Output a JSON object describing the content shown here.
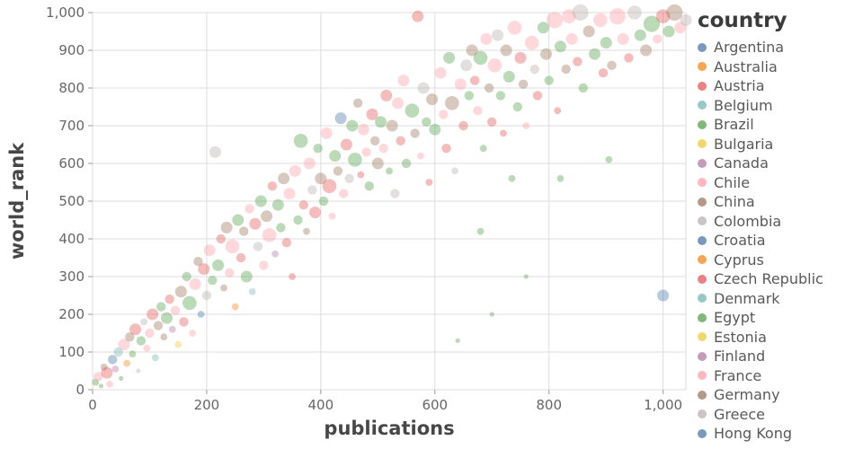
{
  "chart_data": {
    "type": "scatter",
    "title": "",
    "xlabel": "publications",
    "ylabel": "world_rank",
    "xlim": [
      0,
      1040
    ],
    "ylim": [
      0,
      1000
    ],
    "grid": true,
    "point_opacity": 0.4,
    "x_ticks": [
      {
        "v": 0,
        "label": "0"
      },
      {
        "v": 200,
        "label": "200"
      },
      {
        "v": 400,
        "label": "400"
      },
      {
        "v": 600,
        "label": "600"
      },
      {
        "v": 800,
        "label": "800"
      },
      {
        "v": 1000,
        "label": "1,000"
      }
    ],
    "y_ticks": [
      {
        "v": 0,
        "label": "0"
      },
      {
        "v": 100,
        "label": "100"
      },
      {
        "v": 200,
        "label": "200"
      },
      {
        "v": 300,
        "label": "300"
      },
      {
        "v": 400,
        "label": "400"
      },
      {
        "v": 500,
        "label": "500"
      },
      {
        "v": 600,
        "label": "600"
      },
      {
        "v": 700,
        "label": "700"
      },
      {
        "v": 800,
        "label": "800"
      },
      {
        "v": 900,
        "label": "900"
      },
      {
        "v": 1000,
        "label": "1,000"
      }
    ],
    "legend": {
      "title": "country",
      "position": "right",
      "items": [
        "Argentina",
        "Australia",
        "Austria",
        "Belgium",
        "Brazil",
        "Bulgaria",
        "Canada",
        "Chile",
        "China",
        "Colombia",
        "Croatia",
        "Cyprus",
        "Czech Republic",
        "Denmark",
        "Egypt",
        "Estonia",
        "Finland",
        "France",
        "Germany",
        "Greece",
        "Hong Kong"
      ]
    },
    "palette": [
      "#4c78a8",
      "#f58518",
      "#e45756",
      "#72b7b2",
      "#54a24b",
      "#eeca3b",
      "#b279a2",
      "#ff9da6",
      "#9d755d",
      "#bab0ac"
    ],
    "points_format": [
      "publications",
      "world_rank",
      "radius",
      "country_index"
    ],
    "points": [
      [
        5,
        20,
        3,
        4
      ],
      [
        10,
        35,
        4,
        17
      ],
      [
        15,
        10,
        2,
        14
      ],
      [
        20,
        60,
        3,
        8
      ],
      [
        25,
        45,
        5,
        2
      ],
      [
        30,
        15,
        3,
        7
      ],
      [
        35,
        80,
        4,
        0
      ],
      [
        40,
        55,
        3,
        16
      ],
      [
        45,
        100,
        4,
        3
      ],
      [
        50,
        30,
        2,
        4
      ],
      [
        55,
        120,
        5,
        17
      ],
      [
        60,
        70,
        3,
        1
      ],
      [
        65,
        140,
        4,
        8
      ],
      [
        70,
        95,
        3,
        14
      ],
      [
        75,
        160,
        5,
        2
      ],
      [
        80,
        50,
        2,
        19
      ],
      [
        85,
        130,
        4,
        4
      ],
      [
        90,
        180,
        3,
        9
      ],
      [
        95,
        110,
        3,
        7
      ],
      [
        100,
        150,
        4,
        17
      ],
      [
        105,
        200,
        5,
        2
      ],
      [
        110,
        85,
        3,
        13
      ],
      [
        115,
        170,
        4,
        8
      ],
      [
        120,
        220,
        4,
        4
      ],
      [
        125,
        140,
        3,
        18
      ],
      [
        130,
        190,
        5,
        14
      ],
      [
        135,
        240,
        4,
        2
      ],
      [
        140,
        160,
        3,
        6
      ],
      [
        145,
        210,
        4,
        17
      ],
      [
        150,
        120,
        3,
        5
      ],
      [
        155,
        260,
        5,
        8
      ],
      [
        160,
        180,
        4,
        2
      ],
      [
        165,
        300,
        4,
        14
      ],
      [
        170,
        230,
        6,
        4
      ],
      [
        175,
        150,
        3,
        17
      ],
      [
        180,
        280,
        5,
        7
      ],
      [
        185,
        340,
        4,
        8
      ],
      [
        190,
        200,
        3,
        0
      ],
      [
        195,
        320,
        5,
        2
      ],
      [
        200,
        250,
        4,
        9
      ],
      [
        205,
        370,
        5,
        17
      ],
      [
        210,
        290,
        4,
        14
      ],
      [
        215,
        630,
        5,
        9
      ],
      [
        220,
        330,
        5,
        4
      ],
      [
        225,
        400,
        4,
        2
      ],
      [
        230,
        270,
        3,
        8
      ],
      [
        235,
        430,
        5,
        18
      ],
      [
        240,
        310,
        4,
        7
      ],
      [
        245,
        380,
        6,
        17
      ],
      [
        250,
        220,
        3,
        1
      ],
      [
        255,
        450,
        5,
        14
      ],
      [
        260,
        350,
        4,
        2
      ],
      [
        265,
        420,
        4,
        8
      ],
      [
        270,
        300,
        5,
        4
      ],
      [
        275,
        480,
        4,
        17
      ],
      [
        280,
        260,
        3,
        3
      ],
      [
        285,
        440,
        5,
        2
      ],
      [
        290,
        380,
        4,
        9
      ],
      [
        295,
        500,
        5,
        14
      ],
      [
        300,
        330,
        4,
        7
      ],
      [
        305,
        460,
        5,
        8
      ],
      [
        310,
        410,
        6,
        17
      ],
      [
        315,
        540,
        4,
        2
      ],
      [
        320,
        360,
        3,
        16
      ],
      [
        325,
        490,
        5,
        4
      ],
      [
        330,
        430,
        4,
        14
      ],
      [
        335,
        560,
        5,
        8
      ],
      [
        340,
        390,
        4,
        2
      ],
      [
        345,
        520,
        5,
        17
      ],
      [
        350,
        300,
        3,
        12
      ],
      [
        355,
        580,
        5,
        7
      ],
      [
        360,
        450,
        4,
        14
      ],
      [
        365,
        660,
        6,
        4
      ],
      [
        370,
        490,
        4,
        2
      ],
      [
        375,
        420,
        3,
        8
      ],
      [
        380,
        600,
        5,
        17
      ],
      [
        385,
        530,
        4,
        9
      ],
      [
        390,
        470,
        5,
        2
      ],
      [
        395,
        640,
        4,
        14
      ],
      [
        400,
        560,
        5,
        8
      ],
      [
        405,
        500,
        4,
        4
      ],
      [
        410,
        680,
        5,
        17
      ],
      [
        415,
        540,
        6,
        2
      ],
      [
        420,
        460,
        3,
        7
      ],
      [
        425,
        620,
        5,
        14
      ],
      [
        430,
        580,
        4,
        8
      ],
      [
        435,
        720,
        5,
        0
      ],
      [
        440,
        520,
        4,
        17
      ],
      [
        445,
        650,
        5,
        2
      ],
      [
        450,
        560,
        4,
        9
      ],
      [
        455,
        700,
        5,
        14
      ],
      [
        460,
        610,
        6,
        4
      ],
      [
        465,
        760,
        4,
        8
      ],
      [
        470,
        570,
        3,
        2
      ],
      [
        475,
        690,
        5,
        17
      ],
      [
        480,
        630,
        4,
        7
      ],
      [
        485,
        540,
        4,
        14
      ],
      [
        490,
        730,
        5,
        2
      ],
      [
        495,
        660,
        4,
        8
      ],
      [
        500,
        600,
        5,
        18
      ],
      [
        505,
        710,
        5,
        4
      ],
      [
        510,
        640,
        4,
        17
      ],
      [
        515,
        780,
        5,
        2
      ],
      [
        520,
        580,
        3,
        14
      ],
      [
        525,
        700,
        5,
        8
      ],
      [
        530,
        520,
        4,
        9
      ],
      [
        535,
        760,
        5,
        7
      ],
      [
        540,
        660,
        4,
        2
      ],
      [
        545,
        820,
        5,
        17
      ],
      [
        550,
        600,
        4,
        14
      ],
      [
        560,
        740,
        6,
        4
      ],
      [
        565,
        680,
        4,
        8
      ],
      [
        570,
        990,
        5,
        2
      ],
      [
        575,
        620,
        3,
        17
      ],
      [
        580,
        800,
        5,
        9
      ],
      [
        585,
        710,
        4,
        14
      ],
      [
        590,
        550,
        3,
        2
      ],
      [
        595,
        770,
        5,
        8
      ],
      [
        600,
        690,
        5,
        4
      ],
      [
        610,
        840,
        5,
        17
      ],
      [
        615,
        730,
        4,
        7
      ],
      [
        620,
        640,
        4,
        2
      ],
      [
        625,
        880,
        5,
        14
      ],
      [
        630,
        760,
        6,
        8
      ],
      [
        635,
        580,
        3,
        19
      ],
      [
        640,
        130,
        2,
        4
      ],
      [
        645,
        810,
        5,
        17
      ],
      [
        650,
        700,
        4,
        2
      ],
      [
        655,
        860,
        5,
        9
      ],
      [
        660,
        780,
        4,
        14
      ],
      [
        665,
        900,
        5,
        8
      ],
      [
        670,
        820,
        4,
        2
      ],
      [
        675,
        740,
        4,
        17
      ],
      [
        680,
        880,
        6,
        14
      ],
      [
        685,
        640,
        3,
        4
      ],
      [
        690,
        930,
        5,
        7
      ],
      [
        695,
        800,
        4,
        8
      ],
      [
        700,
        710,
        4,
        2
      ],
      [
        705,
        860,
        6,
        17
      ],
      [
        710,
        940,
        5,
        9
      ],
      [
        715,
        780,
        4,
        14
      ],
      [
        720,
        680,
        3,
        2
      ],
      [
        725,
        900,
        5,
        8
      ],
      [
        730,
        830,
        5,
        4
      ],
      [
        740,
        960,
        6,
        17
      ],
      [
        745,
        750,
        4,
        14
      ],
      [
        750,
        880,
        5,
        2
      ],
      [
        755,
        810,
        4,
        8
      ],
      [
        760,
        700,
        3,
        7
      ],
      [
        770,
        920,
        6,
        17
      ],
      [
        775,
        850,
        4,
        9
      ],
      [
        780,
        780,
        4,
        2
      ],
      [
        790,
        960,
        5,
        14
      ],
      [
        795,
        890,
        5,
        8
      ],
      [
        800,
        820,
        4,
        4
      ],
      [
        810,
        980,
        7,
        17
      ],
      [
        815,
        740,
        3,
        2
      ],
      [
        820,
        910,
        5,
        14
      ],
      [
        830,
        850,
        4,
        8
      ],
      [
        835,
        990,
        6,
        7
      ],
      [
        840,
        930,
        5,
        17
      ],
      [
        850,
        870,
        4,
        2
      ],
      [
        855,
        1000,
        7,
        9
      ],
      [
        860,
        800,
        4,
        14
      ],
      [
        870,
        950,
        5,
        8
      ],
      [
        880,
        890,
        5,
        4
      ],
      [
        890,
        980,
        6,
        17
      ],
      [
        895,
        840,
        4,
        2
      ],
      [
        900,
        920,
        5,
        14
      ],
      [
        910,
        860,
        4,
        8
      ],
      [
        920,
        990,
        7,
        7
      ],
      [
        930,
        930,
        5,
        17
      ],
      [
        940,
        880,
        4,
        2
      ],
      [
        950,
        1000,
        6,
        9
      ],
      [
        960,
        940,
        5,
        14
      ],
      [
        970,
        900,
        5,
        8
      ],
      [
        980,
        970,
        7,
        4
      ],
      [
        990,
        930,
        4,
        17
      ],
      [
        1000,
        250,
        5,
        0
      ],
      [
        1000,
        990,
        6,
        2
      ],
      [
        1010,
        950,
        5,
        14
      ],
      [
        1020,
        1000,
        7,
        8
      ],
      [
        1030,
        960,
        5,
        17
      ],
      [
        1040,
        980,
        5,
        9
      ],
      [
        735,
        560,
        3,
        4
      ],
      [
        820,
        560,
        3,
        4
      ],
      [
        760,
        300,
        2,
        4
      ],
      [
        700,
        200,
        2,
        4
      ],
      [
        680,
        420,
        3,
        14
      ],
      [
        905,
        610,
        3,
        4
      ]
    ]
  }
}
